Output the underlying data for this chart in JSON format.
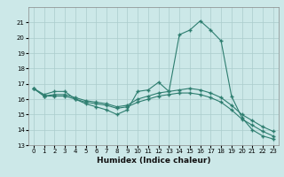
{
  "xlabel": "Humidex (Indice chaleur)",
  "ylabel": "",
  "x": [
    0,
    1,
    2,
    3,
    4,
    5,
    6,
    7,
    8,
    9,
    10,
    11,
    12,
    13,
    14,
    15,
    16,
    17,
    18,
    19,
    20,
    21,
    22,
    23
  ],
  "line1": [
    16.7,
    16.3,
    16.5,
    16.5,
    16.0,
    15.7,
    15.5,
    15.3,
    15.0,
    15.3,
    16.5,
    16.6,
    17.1,
    16.5,
    20.2,
    20.5,
    21.1,
    20.5,
    19.8,
    16.2,
    14.8,
    14.0,
    13.6,
    13.4
  ],
  "line2": [
    16.7,
    16.2,
    16.3,
    16.3,
    16.1,
    15.9,
    15.8,
    15.7,
    15.5,
    15.6,
    16.0,
    16.2,
    16.4,
    16.5,
    16.6,
    16.7,
    16.6,
    16.4,
    16.1,
    15.6,
    15.0,
    14.6,
    14.2,
    13.9
  ],
  "line3": [
    16.7,
    16.2,
    16.2,
    16.2,
    16.0,
    15.8,
    15.7,
    15.6,
    15.4,
    15.5,
    15.8,
    16.0,
    16.2,
    16.3,
    16.4,
    16.4,
    16.3,
    16.1,
    15.8,
    15.3,
    14.7,
    14.3,
    13.9,
    13.6
  ],
  "line_color": "#2d7d6f",
  "bg_color": "#cce8e8",
  "grid_color": "#aacccc",
  "ylim": [
    13,
    22
  ],
  "yticks": [
    13,
    14,
    15,
    16,
    17,
    18,
    19,
    20,
    21
  ],
  "xticks": [
    0,
    1,
    2,
    3,
    4,
    5,
    6,
    7,
    8,
    9,
    10,
    11,
    12,
    13,
    14,
    15,
    16,
    17,
    18,
    19,
    20,
    21,
    22,
    23
  ],
  "marker": "+"
}
